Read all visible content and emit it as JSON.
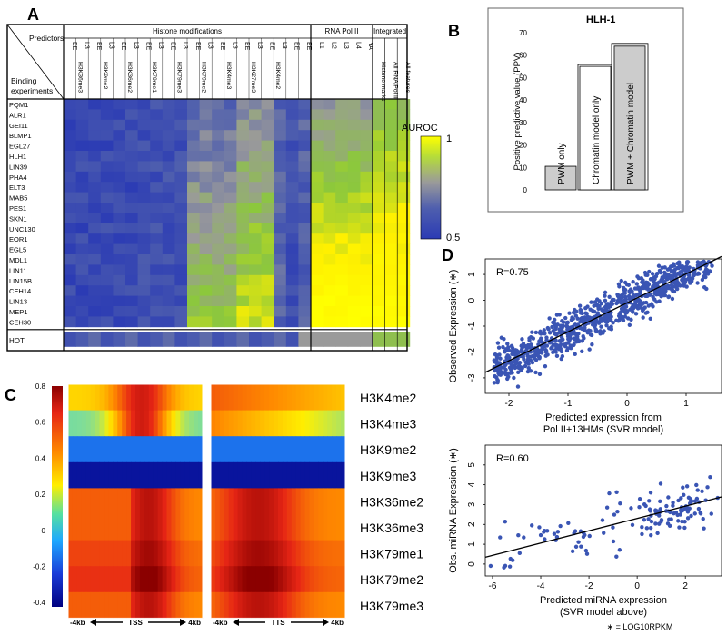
{
  "panel_labels": {
    "a": "A",
    "b": "B",
    "c": "C",
    "d": "D"
  },
  "panel_a": {
    "corner_top": "Predictors",
    "corner_bottom": "Binding\nexperiments",
    "group_headers": [
      "Histone modifications",
      "RNA Pol II",
      "Integrated"
    ],
    "stage_row": [
      "EE",
      "L3",
      "EE",
      "L3",
      "EE",
      "L3",
      "EE",
      "L3",
      "EE",
      "L3",
      "EE",
      "L3",
      "EE",
      "L3",
      "EE",
      "L3",
      "EE",
      "L3",
      "EE",
      "EE",
      "L1",
      "L2",
      "L3",
      "L4",
      "YA"
    ],
    "mark_names": [
      "H3K36me3",
      "H3K9me2",
      "H3K36me2",
      "H3K79me1",
      "H3K79me3",
      "H3K79me2",
      "H3K4me3",
      "H3K27me3",
      "H3K4me2"
    ],
    "integrated_labels": [
      "Histone marks",
      "All RNA Pol II",
      "All features"
    ],
    "rows": [
      "PQM1",
      "ALR1",
      "GEI11",
      "BLMP1",
      "EGL27",
      "HLH1",
      "LIN39",
      "PHA4",
      "ELT3",
      "MAB5",
      "PES1",
      "SKN1",
      "UNC130",
      "EOR1",
      "EGL5",
      "MDL1",
      "LIN11",
      "LIN15B",
      "CEH14",
      "LIN13",
      "MEP1",
      "CEH30"
    ],
    "hot_label": "HOT",
    "colorbar_title": "AUROC",
    "colorbar_max": "1",
    "colorbar_min": "0.5"
  },
  "chart_data": [
    {
      "type": "bar",
      "title": "HLH-1",
      "categories": [
        "PWM only",
        "Chromatin model only",
        "PWM + Chromatin model"
      ],
      "values": [
        10.5,
        55,
        64
      ],
      "xlabel": "",
      "ylabel": "Positive predictive value (PPV)",
      "ylim": [
        0,
        70
      ],
      "yticks": [
        "0",
        "10",
        "20",
        "30",
        "40",
        "50",
        "60",
        "70"
      ],
      "bar_colors": [
        "#cccccc",
        "#ffffff",
        "#cccccc"
      ]
    },
    {
      "type": "heatmap",
      "rows": [
        "H3K4me2",
        "H3K4me3",
        "H3K9me2",
        "H3K9me3",
        "H3K36me2",
        "H3K36me3",
        "H3K79me1",
        "H3K79me2",
        "H3K79me3"
      ],
      "colorbar_ticks": [
        "0.8",
        "0.6",
        "0.4",
        "0.2",
        "0",
        "-0.2",
        "-0.4"
      ],
      "left_axis": {
        "left": "-4kb",
        "center": "TSS",
        "right": "4kb"
      },
      "right_axis": {
        "left": "-4kb",
        "center": "TTS",
        "right": "4kb"
      }
    },
    {
      "type": "scatter",
      "annotation": "R=0.75",
      "xlabel": "Predicted expression from\nPol II+13HMs (SVR model)",
      "ylabel": "Observed Expression (∗)",
      "xticks": [
        "-2",
        "-1",
        "0",
        "1"
      ],
      "yticks": [
        "1",
        "0",
        "-1",
        "-2",
        "-3"
      ],
      "xlim": [
        -2.4,
        1.6
      ],
      "ylim": [
        -3.6,
        1.6
      ],
      "fit": {
        "slope": 1.12,
        "intercept": -0.1
      }
    },
    {
      "type": "scatter",
      "annotation": "R=0.60",
      "xlabel": "Predicted miRNA expression\n(SVR model above)",
      "ylabel": "Obs. miRNA Expression (∗)",
      "xticks": [
        "-6",
        "-4",
        "-2",
        "0",
        "2"
      ],
      "yticks": [
        "5",
        "4",
        "3",
        "2",
        "1",
        "0"
      ],
      "xlim": [
        -6.3,
        3.5
      ],
      "ylim": [
        -0.6,
        6
      ],
      "fit": {
        "slope": 0.31,
        "intercept": 2.3
      },
      "footnote": "∗ = LOG10RPKM"
    }
  ]
}
